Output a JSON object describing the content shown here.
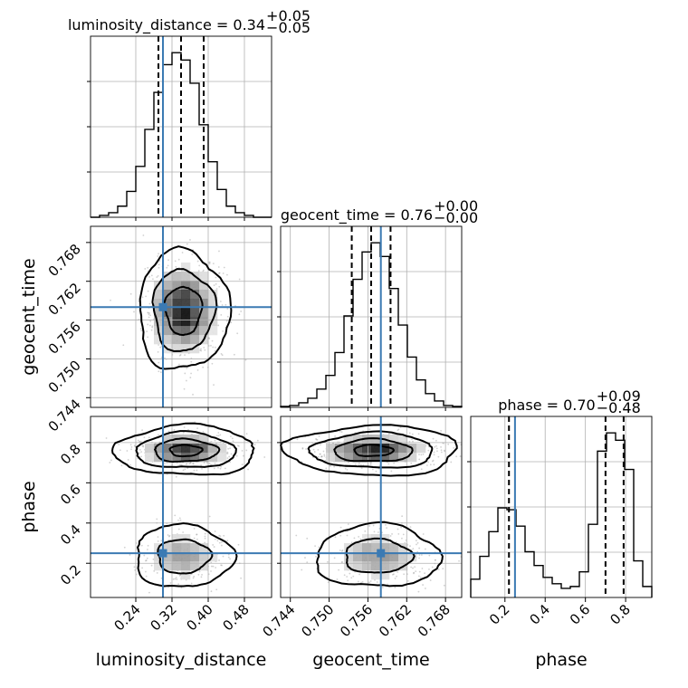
{
  "chart_data": {
    "type": "corner",
    "parameters": [
      "luminosity_distance",
      "geocent_time",
      "phase"
    ],
    "titles": [
      {
        "param": "luminosity_distance",
        "label": "luminosity_distance = 0.34",
        "plus": "+0.05",
        "minus": "−0.05"
      },
      {
        "param": "geocent_time",
        "label": "geocent_time = 0.76",
        "plus": "+0.00",
        "minus": "−0.00"
      },
      {
        "param": "phase",
        "label": "phase = 0.70",
        "plus": "+0.09",
        "minus": "−0.48"
      }
    ],
    "ranges": {
      "luminosity_distance": [
        0.14,
        0.54
      ],
      "geocent_time": [
        0.7425,
        0.7705
      ],
      "phase": [
        0.03,
        0.93
      ]
    },
    "ticks": {
      "luminosity_distance": {
        "values": [
          0.24,
          0.32,
          0.4,
          0.48
        ],
        "labels": [
          "0.24",
          "0.32",
          "0.40",
          "0.48"
        ]
      },
      "geocent_time": {
        "values": [
          0.744,
          0.75,
          0.756,
          0.762,
          0.768
        ],
        "labels": [
          "0.744",
          "0.750",
          "0.756",
          "0.762",
          "0.768"
        ]
      },
      "phase": {
        "values": [
          0.2,
          0.4,
          0.6,
          0.8
        ],
        "labels": [
          "0.2",
          "0.4",
          "0.6",
          "0.8"
        ]
      }
    },
    "truths": {
      "luminosity_distance": 0.3,
      "geocent_time": 0.758,
      "phase": 0.25
    },
    "quantiles": {
      "luminosity_distance": [
        0.29,
        0.34,
        0.39
      ],
      "geocent_time": [
        0.7535,
        0.7565,
        0.7595
      ],
      "phase": [
        0.22,
        0.7,
        0.79
      ]
    },
    "histograms": {
      "luminosity_distance": {
        "edges": [
          0.14,
          0.16,
          0.18,
          0.2,
          0.22,
          0.24,
          0.26,
          0.28,
          0.3,
          0.32,
          0.34,
          0.36,
          0.38,
          0.4,
          0.42,
          0.44,
          0.46,
          0.48,
          0.5,
          0.52,
          0.54
        ],
        "counts": [
          0,
          2,
          5,
          12,
          28,
          55,
          95,
          135,
          165,
          178,
          170,
          145,
          100,
          60,
          30,
          12,
          5,
          2,
          0,
          0
        ]
      },
      "geocent_time": {
        "edges": [
          0.7425,
          0.7439,
          0.7453,
          0.7467,
          0.7481,
          0.7495,
          0.7509,
          0.7523,
          0.7537,
          0.7551,
          0.7565,
          0.7579,
          0.7593,
          0.7607,
          0.7621,
          0.7635,
          0.7649,
          0.7663,
          0.7677,
          0.7691,
          0.7705
        ],
        "counts": [
          1,
          2,
          5,
          10,
          20,
          35,
          60,
          100,
          140,
          170,
          180,
          165,
          130,
          90,
          55,
          30,
          15,
          7,
          2,
          1
        ]
      },
      "phase": {
        "edges": [
          0.03,
          0.075,
          0.12,
          0.165,
          0.21,
          0.255,
          0.3,
          0.345,
          0.39,
          0.435,
          0.48,
          0.525,
          0.57,
          0.615,
          0.66,
          0.705,
          0.75,
          0.795,
          0.84,
          0.885,
          0.93
        ],
        "counts": [
          20,
          45,
          72,
          98,
          96,
          78,
          50,
          35,
          22,
          15,
          10,
          12,
          28,
          80,
          160,
          180,
          172,
          140,
          40,
          12
        ]
      }
    },
    "contours_2d": [
      {
        "x": "luminosity_distance",
        "y": "geocent_time",
        "center": [
          0.345,
          0.7575
        ],
        "sigma": [
          0.04,
          0.0037
        ],
        "levels": [
          1.0,
          1.7,
          2.5
        ]
      },
      {
        "x": "luminosity_distance",
        "y": "phase",
        "blobs": [
          {
            "center": [
              0.35,
              0.76
            ],
            "sigma": [
              0.05,
              0.04
            ],
            "levels": [
              0.7,
              1.4,
              2.2,
              3.1
            ]
          },
          {
            "center": [
              0.345,
              0.235
            ],
            "sigma": [
              0.045,
              0.065
            ],
            "levels": [
              1.3,
              2.4
            ]
          }
        ]
      },
      {
        "x": "geocent_time",
        "y": "phase",
        "blobs": [
          {
            "center": [
              0.7568,
              0.76
            ],
            "sigma": [
              0.0043,
              0.04
            ],
            "levels": [
              0.7,
              1.4,
              2.2,
              3.1
            ]
          },
          {
            "center": [
              0.7575,
              0.235
            ],
            "sigma": [
              0.004,
              0.065
            ],
            "levels": [
              1.3,
              2.4
            ]
          }
        ]
      }
    ]
  }
}
